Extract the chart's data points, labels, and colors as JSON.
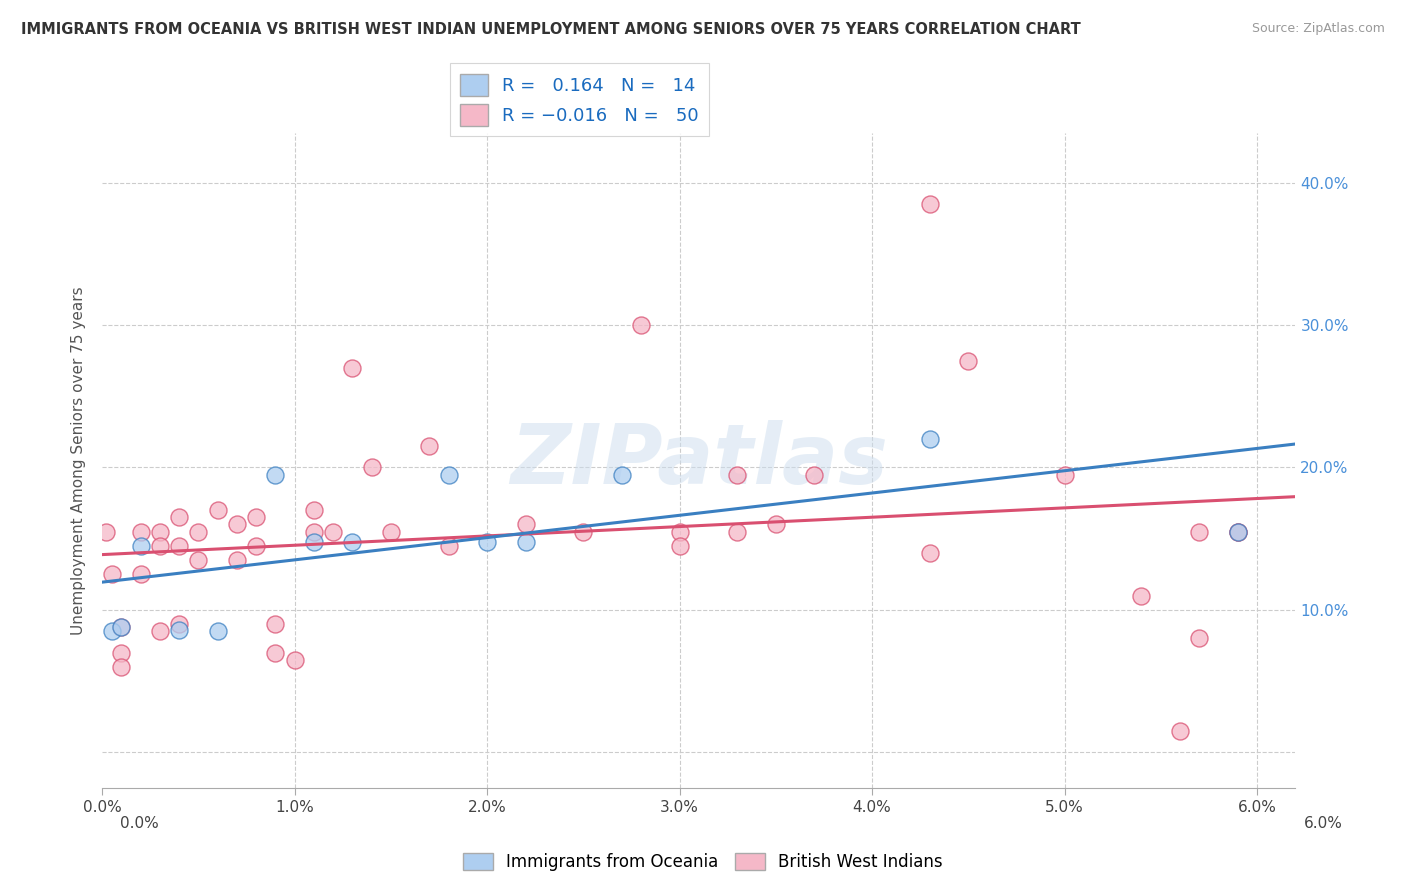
{
  "title": "IMMIGRANTS FROM OCEANIA VS BRITISH WEST INDIAN UNEMPLOYMENT AMONG SENIORS OVER 75 YEARS CORRELATION CHART",
  "source": "Source: ZipAtlas.com",
  "ylabel": "Unemployment Among Seniors over 75 years",
  "legend_label1": "Immigrants from Oceania",
  "legend_label2": "British West Indians",
  "r1": "0.164",
  "n1": "14",
  "r2": "-0.016",
  "n2": "50",
  "color1": "#aecef0",
  "color2": "#f5b8c8",
  "line_color1": "#3a7fc1",
  "line_color2": "#d94f70",
  "watermark": "ZIPatlas",
  "xlim": [
    0.0,
    0.062
  ],
  "ylim": [
    -0.025,
    0.435
  ],
  "xticks": [
    0.0,
    0.01,
    0.02,
    0.03,
    0.04,
    0.05,
    0.06
  ],
  "yticks": [
    0.0,
    0.1,
    0.2,
    0.3,
    0.4
  ],
  "oceania_x": [
    0.0005,
    0.001,
    0.002,
    0.004,
    0.006,
    0.009,
    0.011,
    0.013,
    0.018,
    0.02,
    0.022,
    0.027,
    0.043,
    0.059
  ],
  "oceania_y": [
    0.085,
    0.088,
    0.145,
    0.086,
    0.085,
    0.195,
    0.148,
    0.148,
    0.195,
    0.148,
    0.148,
    0.195,
    0.22,
    0.155
  ],
  "bwi_x": [
    0.0002,
    0.0005,
    0.001,
    0.001,
    0.001,
    0.002,
    0.002,
    0.003,
    0.003,
    0.003,
    0.004,
    0.004,
    0.004,
    0.005,
    0.005,
    0.006,
    0.007,
    0.007,
    0.008,
    0.008,
    0.009,
    0.009,
    0.01,
    0.011,
    0.011,
    0.012,
    0.013,
    0.014,
    0.015,
    0.017,
    0.018,
    0.022,
    0.028,
    0.03,
    0.03,
    0.033,
    0.035,
    0.037,
    0.043,
    0.043,
    0.045,
    0.05,
    0.054,
    0.056,
    0.057,
    0.057,
    0.059,
    0.059,
    0.033,
    0.025
  ],
  "bwi_y": [
    0.155,
    0.125,
    0.088,
    0.07,
    0.06,
    0.155,
    0.125,
    0.155,
    0.145,
    0.085,
    0.165,
    0.145,
    0.09,
    0.155,
    0.135,
    0.17,
    0.16,
    0.135,
    0.165,
    0.145,
    0.09,
    0.07,
    0.065,
    0.17,
    0.155,
    0.155,
    0.27,
    0.2,
    0.155,
    0.215,
    0.145,
    0.16,
    0.3,
    0.155,
    0.145,
    0.155,
    0.16,
    0.195,
    0.14,
    0.385,
    0.275,
    0.195,
    0.11,
    0.015,
    0.155,
    0.08,
    0.155,
    0.155,
    0.195,
    0.155
  ]
}
